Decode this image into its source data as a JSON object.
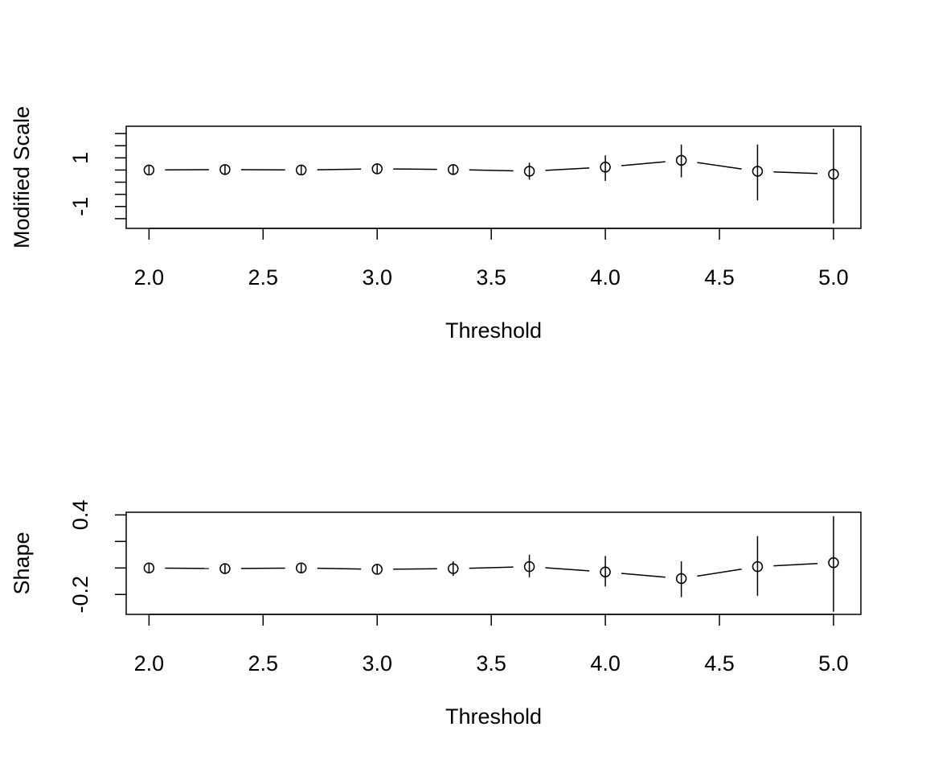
{
  "chart_data": [
    {
      "type": "scatter",
      "title": "",
      "xlabel": "Threshold",
      "ylabel": "Modified Scale",
      "xlim": [
        1.9,
        5.12
      ],
      "ylim": [
        -1.9,
        2.3
      ],
      "xticks": [
        2.0,
        2.5,
        3.0,
        3.5,
        4.0,
        4.5,
        5.0
      ],
      "xtick_labels": [
        "2.0",
        "2.5",
        "3.0",
        "3.5",
        "4.0",
        "4.5",
        "5.0"
      ],
      "yticks": [
        -1.5,
        -1,
        -0.5,
        0,
        0.5,
        1,
        1.5,
        2
      ],
      "ytick_labels": [
        "",
        "-1",
        "",
        "",
        "",
        "1",
        "",
        ""
      ],
      "grid": false,
      "connect_points": true,
      "series": [
        {
          "x": [
            2.0,
            2.333,
            2.667,
            3.0,
            3.333,
            3.667,
            4.0,
            4.333,
            4.667,
            5.0
          ],
          "y": [
            0.5,
            0.52,
            0.5,
            0.55,
            0.52,
            0.45,
            0.62,
            0.9,
            0.45,
            0.33
          ],
          "lower": [
            0.35,
            0.35,
            0.3,
            0.35,
            0.3,
            0.1,
            0.05,
            0.2,
            -0.75,
            -1.7
          ],
          "upper": [
            0.65,
            0.7,
            0.7,
            0.75,
            0.72,
            0.8,
            1.1,
            1.55,
            1.55,
            2.2
          ]
        }
      ]
    },
    {
      "type": "scatter",
      "title": "",
      "xlabel": "Threshold",
      "ylabel": "Shape",
      "xlim": [
        1.9,
        5.12
      ],
      "ylim": [
        -0.35,
        0.42
      ],
      "xticks": [
        2.0,
        2.5,
        3.0,
        3.5,
        4.0,
        4.5,
        5.0
      ],
      "xtick_labels": [
        "2.0",
        "2.5",
        "3.0",
        "3.5",
        "4.0",
        "4.5",
        "5.0"
      ],
      "yticks": [
        -0.2,
        0.0,
        0.2,
        0.4
      ],
      "ytick_labels": [
        "-0.2",
        "",
        "",
        "0.4"
      ],
      "grid": false,
      "connect_points": true,
      "series": [
        {
          "x": [
            2.0,
            2.333,
            2.667,
            3.0,
            3.333,
            3.667,
            4.0,
            4.333,
            4.667,
            5.0
          ],
          "y": [
            0.0,
            -0.005,
            0.0,
            -0.01,
            -0.005,
            0.01,
            -0.03,
            -0.08,
            0.01,
            0.04
          ],
          "lower": [
            -0.02,
            -0.03,
            -0.03,
            -0.04,
            -0.06,
            -0.07,
            -0.14,
            -0.22,
            -0.21,
            -0.33
          ],
          "upper": [
            0.02,
            0.03,
            0.03,
            0.03,
            0.05,
            0.1,
            0.09,
            0.05,
            0.24,
            0.39
          ]
        }
      ]
    }
  ]
}
